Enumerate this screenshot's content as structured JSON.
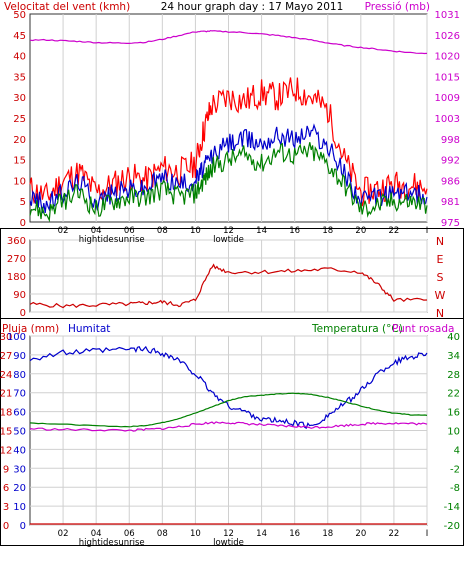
{
  "header": {
    "left_label": "Velocitat del vent (kmh)",
    "center_label": "24 hour graph day : 17 Mayo 2011",
    "right_label": "Pressió (mb)"
  },
  "colors": {
    "wind_red": "#ff0000",
    "wind_blue": "#0000cc",
    "wind_green": "#008000",
    "pressure": "#cc00cc",
    "humidity": "#0000cc",
    "temperature": "#008000",
    "dewpoint": "#cc00cc",
    "rain": "#cc0000",
    "direction": "#cc0000",
    "grid": "#d0d0d0",
    "frame": "#333333"
  },
  "x_ticks": [
    "02",
    "04",
    "06",
    "08",
    "10",
    "12",
    "14",
    "16",
    "18",
    "20",
    "22",
    "I"
  ],
  "x_events": [
    {
      "label": "hightide",
      "at_tick": "04"
    },
    {
      "label": "sunrise",
      "at_tick": "06"
    },
    {
      "label": "lowtide",
      "at_tick": "12"
    }
  ],
  "chart_data": [
    {
      "type": "line",
      "ylabel": "Velocitat del vent (kmh)",
      "y2label": "Pressió (mb)",
      "ylim": [
        0,
        50
      ],
      "y2lim": [
        975,
        1031
      ],
      "yticks": [
        0,
        5,
        10,
        15,
        20,
        25,
        30,
        35,
        40,
        45,
        50
      ],
      "y2ticks": [
        975,
        981,
        986,
        992,
        998,
        1003,
        1009,
        1015,
        1020,
        1026,
        1031
      ],
      "x": [
        0,
        1,
        2,
        3,
        4,
        5,
        6,
        7,
        8,
        9,
        10,
        10.5,
        11,
        12,
        13,
        14,
        15,
        16,
        17,
        18,
        19,
        20,
        21,
        22,
        23,
        24
      ],
      "series": [
        {
          "name": "",
          "color_key": "wind_red",
          "values": [
            8,
            6,
            10,
            12,
            7,
            9,
            11,
            10,
            13,
            12,
            14,
            22,
            28,
            30,
            29,
            31,
            30,
            32,
            30,
            27,
            15,
            7,
            8,
            9,
            9,
            8
          ]
        },
        {
          "name": "",
          "color_key": "wind_blue",
          "values": [
            6,
            4,
            7,
            10,
            5,
            7,
            8,
            8,
            11,
            9,
            10,
            13,
            16,
            19,
            20,
            19,
            21,
            20,
            22,
            18,
            12,
            5,
            6,
            7,
            7,
            6
          ]
        },
        {
          "name": "",
          "color_key": "wind_green",
          "values": [
            4,
            2,
            5,
            7,
            3,
            5,
            6,
            6,
            8,
            6,
            7,
            10,
            13,
            15,
            16,
            14,
            17,
            16,
            17,
            14,
            9,
            3,
            4,
            5,
            5,
            4
          ]
        },
        {
          "name": "",
          "axis": "y2",
          "color_key": "pressure",
          "values": [
            1024,
            1024,
            1023.8,
            1023.6,
            1023.3,
            1023.2,
            1023.2,
            1023.4,
            1024.2,
            1025.2,
            1026.2,
            1026.3,
            1026.4,
            1026.2,
            1026,
            1025.6,
            1025.2,
            1024.6,
            1024,
            1023.2,
            1022.5,
            1022,
            1021.5,
            1021,
            1020.6,
            1020.4
          ]
        }
      ]
    },
    {
      "type": "line",
      "ylabel": "",
      "y2label": "N W S E N",
      "ylim": [
        0,
        360
      ],
      "yticks": [
        0,
        90,
        180,
        270,
        360
      ],
      "y2ticks": [
        "N",
        "E",
        "S",
        "W",
        "N"
      ],
      "x": [
        0,
        2,
        4,
        6,
        7,
        8,
        9,
        10,
        11,
        12,
        14,
        16,
        18,
        20,
        21,
        22,
        24
      ],
      "series": [
        {
          "name": "",
          "color_key": "direction",
          "values": [
            40,
            30,
            35,
            40,
            45,
            50,
            35,
            60,
            230,
            200,
            200,
            205,
            215,
            200,
            140,
            60,
            60
          ]
        }
      ]
    },
    {
      "type": "line",
      "title_left": "Pluja (mm)",
      "title_mid": "Humitat",
      "title_right_temp": "Temperatura (°C)",
      "title_right_dew": "Punt rosada",
      "ylim": [
        0,
        100
      ],
      "ylim_rain": [
        0,
        30
      ],
      "y2lim": [
        -20,
        40
      ],
      "y_rain_ticks": [
        0,
        3,
        6,
        9,
        12,
        15,
        18,
        21,
        24,
        27,
        30
      ],
      "y_hum_ticks": [
        0,
        10,
        20,
        30,
        40,
        50,
        60,
        70,
        80,
        90,
        100
      ],
      "y2ticks": [
        -20,
        -14,
        -8,
        -2,
        4,
        10,
        16,
        22,
        28,
        34,
        40
      ],
      "x": [
        0,
        2,
        4,
        6,
        7,
        8,
        9,
        10,
        11,
        12,
        13,
        14,
        15,
        16,
        17,
        18,
        19,
        20,
        21,
        22,
        23,
        24
      ],
      "series": [
        {
          "name": "Humitat",
          "color_key": "humidity",
          "values": [
            88,
            91,
            92,
            93,
            93,
            91,
            87,
            80,
            70,
            63,
            60,
            56,
            55,
            54,
            52,
            58,
            64,
            71,
            80,
            86,
            89,
            91
          ]
        },
        {
          "name": "Temperatura (°C)",
          "axis": "y2",
          "color_key": "temperature",
          "values": [
            12.4,
            12,
            11.5,
            11.2,
            11.6,
            12.5,
            13.8,
            15.5,
            17.5,
            19.5,
            20.8,
            21.2,
            21.6,
            21.8,
            21.5,
            20.5,
            19.2,
            17.8,
            16.5,
            15.5,
            15,
            14.8
          ]
        },
        {
          "name": "Punt rosada",
          "axis": "y2",
          "color_key": "dewpoint",
          "values": [
            10.6,
            10.3,
            10.2,
            10,
            10.3,
            10.6,
            11.2,
            12,
            12.5,
            12.5,
            12.2,
            11.8,
            11.5,
            11.3,
            11,
            11.2,
            11.6,
            12,
            12.3,
            12.3,
            12.2,
            12
          ]
        },
        {
          "name": "Pluja (mm)",
          "axis": "rain",
          "color_key": "rain",
          "values": [
            0,
            0,
            0,
            0,
            0,
            0,
            0,
            0,
            0,
            0,
            0,
            0,
            0,
            0,
            0,
            0,
            0,
            0,
            0,
            0,
            0,
            0
          ]
        }
      ]
    }
  ]
}
